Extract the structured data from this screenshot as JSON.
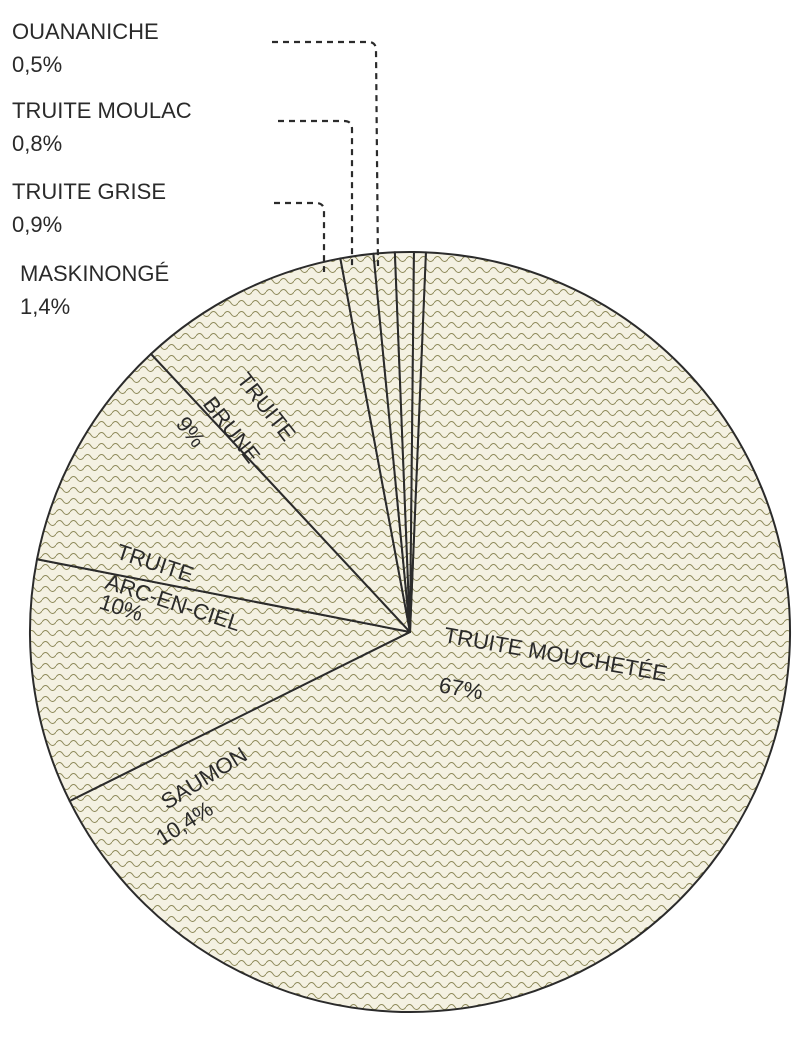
{
  "chart_data": {
    "type": "pie",
    "title": "",
    "slices": [
      {
        "label": "TRUITE MOUCHETÉE",
        "value_label": "67%",
        "value": 67
      },
      {
        "label": "SAUMON",
        "value_label": "10,4%",
        "value": 10.4
      },
      {
        "label": "TRUITE ARC-EN-CIEL",
        "value_label": "10%",
        "value": 10
      },
      {
        "label": "TRUITE BRUNE",
        "value_label": "9%",
        "value": 9
      },
      {
        "label": "MASKINONGÉ",
        "value_label": "1,4%",
        "value": 1.4
      },
      {
        "label": "TRUITE GRISE",
        "value_label": "0,9%",
        "value": 0.9
      },
      {
        "label": "TRUITE MOULAC",
        "value_label": "0,8%",
        "value": 0.8
      },
      {
        "label": "OUANANICHE",
        "value_label": "0,5%",
        "value": 0.5
      }
    ],
    "colors": {
      "fill": "#f4f1e2",
      "wave": "#8e8a5a",
      "outline": "#2b2b2b"
    },
    "label_text": {
      "mouchetee_name": "TRUITE MOUCHETÉE",
      "mouchetee_pct": "67%",
      "saumon_name": "SAUMON",
      "saumon_pct": "10,4%",
      "arc_line1": "TRUITE",
      "arc_line2": "ARC-EN-CIEL",
      "arc_pct": "10%",
      "brune_line1": "TRUITE",
      "brune_line2": "BRUNE",
      "brune_pct": "9%",
      "mask_name": "MASKINONGÉ",
      "mask_pct": "1,4%",
      "grise_name": "TRUITE GRISE",
      "grise_pct": "0,9%",
      "moulac_name": "TRUITE MOULAC",
      "moulac_pct": "0,8%",
      "ouan_name": "OUANANICHE",
      "ouan_pct": "0,5%"
    }
  }
}
